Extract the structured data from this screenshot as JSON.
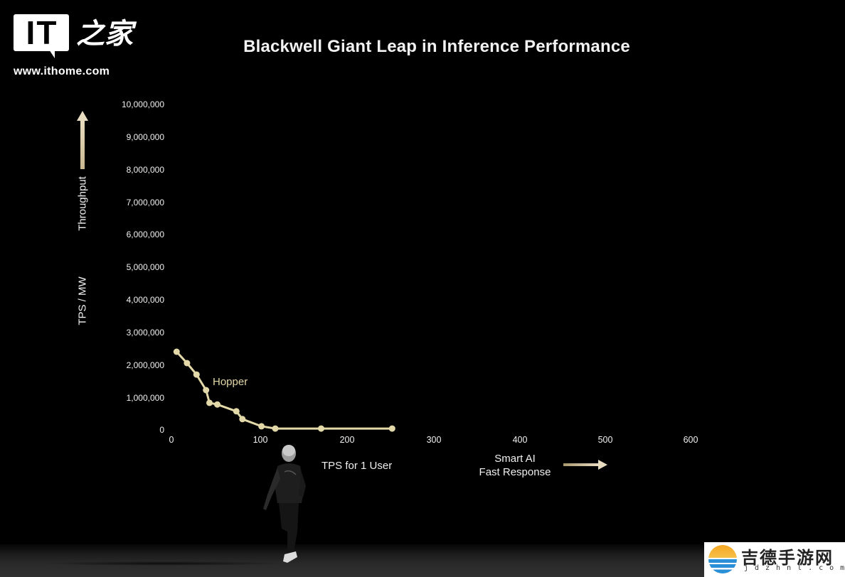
{
  "logo": {
    "mark": "IT",
    "chinese": "之家",
    "url": "www.ithome.com"
  },
  "title": "Blackwell Giant Leap in Inference Performance",
  "y_axis": {
    "label_top": "Throughput",
    "label_bottom": "TPS / MW",
    "ticks": [
      "0",
      "1,000,000",
      "2,000,000",
      "3,000,000",
      "4,000,000",
      "5,000,000",
      "6,000,000",
      "7,000,000",
      "8,000,000",
      "9,000,000",
      "10,000,000"
    ]
  },
  "x_axis": {
    "label": "TPS for 1 User",
    "note_line1": "Smart AI",
    "note_line2": "Fast Response",
    "ticks": [
      "0",
      "100",
      "200",
      "300",
      "400",
      "500",
      "600"
    ]
  },
  "series_label": "Hopper",
  "colors": {
    "background": "#000000",
    "series": "#e3d8a8",
    "axis": "#8a8a8a",
    "text": "#f0f0f0",
    "arrow": "#e8dcc0"
  },
  "watermark": {
    "chinese": "吉德手游网",
    "url": "jdzhnl.com"
  },
  "chart_data": {
    "type": "line",
    "title": "Blackwell Giant Leap in Inference Performance",
    "xlabel": "TPS for 1 User",
    "ylabel": "TPS / MW (Throughput)",
    "xlim": [
      0,
      650
    ],
    "ylim": [
      0,
      10000000
    ],
    "x_ticks": [
      0,
      100,
      200,
      300,
      400,
      500,
      600
    ],
    "y_ticks": [
      0,
      1000000,
      2000000,
      3000000,
      4000000,
      5000000,
      6000000,
      7000000,
      8000000,
      9000000,
      10000000
    ],
    "grid": false,
    "legend": "inline label 'Hopper' near curve",
    "annotations": [
      "Throughput ↑ (y-axis direction)",
      "Smart AI Fast Response → (x-axis direction)"
    ],
    "series": [
      {
        "name": "Hopper",
        "x": [
          6,
          18,
          29,
          40,
          44,
          53,
          75,
          82,
          104,
          120,
          173,
          255
        ],
        "y": [
          2380000,
          2030000,
          1680000,
          1200000,
          810000,
          760000,
          550000,
          310000,
          90000,
          20000,
          20000,
          20000
        ]
      }
    ]
  }
}
